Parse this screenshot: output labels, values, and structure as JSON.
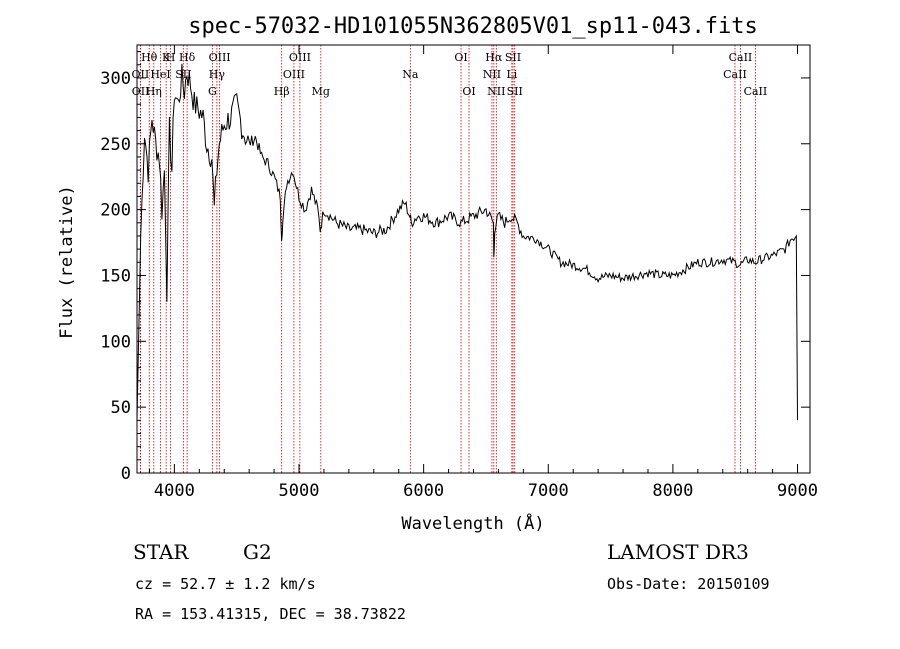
{
  "chart_data": {
    "type": "line",
    "title": "spec-57032-HD101055N362805V01_sp11-043.fits",
    "xlabel": "Wavelength (Å)",
    "ylabel": "Flux (relative)",
    "xlim": [
      3700,
      9100
    ],
    "ylim": [
      0,
      325
    ],
    "xticks": [
      4000,
      5000,
      6000,
      7000,
      8000,
      9000
    ],
    "yticks": [
      0,
      50,
      100,
      150,
      200,
      250,
      300
    ],
    "series": [
      {
        "x": [
          3700,
          3730,
          3760,
          3790,
          3820,
          3850,
          3880,
          3900,
          3920,
          3940,
          3960,
          3980,
          4000,
          4030,
          4060,
          4080,
          4100,
          4130,
          4160,
          4200,
          4230,
          4260,
          4300,
          4320,
          4340,
          4360,
          4400,
          4450,
          4500,
          4550,
          4600,
          4650,
          4700,
          4750,
          4800,
          4850,
          4860,
          4870,
          4900,
          4950,
          5000,
          5050,
          5100,
          5150,
          5170,
          5180,
          5200,
          5250,
          5300,
          5400,
          5500,
          5600,
          5700,
          5800,
          5850,
          5890,
          5900,
          5950,
          6000,
          6100,
          6200,
          6300,
          6400,
          6500,
          6560,
          6563,
          6570,
          6600,
          6650,
          6700,
          6750,
          6800,
          6900,
          7000,
          7100,
          7200,
          7300,
          7400,
          7500,
          7600,
          7700,
          7800,
          7900,
          8000,
          8100,
          8200,
          8300,
          8400,
          8500,
          8540,
          8600,
          8660,
          8700,
          8800,
          8900,
          8950,
          8990,
          9000
        ],
        "y": [
          40,
          180,
          260,
          230,
          270,
          250,
          240,
          200,
          230,
          140,
          260,
          230,
          290,
          280,
          300,
          290,
          305,
          295,
          280,
          275,
          270,
          250,
          240,
          200,
          230,
          250,
          265,
          270,
          280,
          260,
          250,
          255,
          240,
          235,
          225,
          210,
          180,
          190,
          220,
          230,
          210,
          200,
          215,
          200,
          185,
          190,
          200,
          195,
          190,
          185,
          185,
          182,
          185,
          200,
          205,
          195,
          190,
          195,
          195,
          190,
          195,
          190,
          195,
          200,
          190,
          165,
          185,
          195,
          190,
          195,
          190,
          180,
          178,
          170,
          160,
          158,
          155,
          148,
          150,
          148,
          150,
          152,
          150,
          150,
          155,
          160,
          160,
          162,
          160,
          158,
          162,
          160,
          162,
          165,
          170,
          178,
          180,
          40
        ]
      }
    ],
    "lines": [
      {
        "label": "Hθ",
        "x": 3798,
        "row": 0
      },
      {
        "label": "OII",
        "x": 3727,
        "row": 1
      },
      {
        "label": "OII",
        "x": 3729,
        "row": 2
      },
      {
        "label": "Hη",
        "x": 3835,
        "row": 2
      },
      {
        "label": "K",
        "x": 3934,
        "row": 0
      },
      {
        "label": "HeI",
        "x": 3889,
        "row": 1
      },
      {
        "label": "H",
        "x": 3969,
        "row": 0
      },
      {
        "label": "SII",
        "x": 4072,
        "row": 1
      },
      {
        "label": "Hδ",
        "x": 4102,
        "row": 0
      },
      {
        "label": "OIII",
        "x": 4363,
        "row": 0
      },
      {
        "label": "Hγ",
        "x": 4341,
        "row": 1
      },
      {
        "label": "G",
        "x": 4305,
        "row": 2
      },
      {
        "label": "Hβ",
        "x": 4861,
        "row": 2
      },
      {
        "label": "OIII",
        "x": 5007,
        "row": 0
      },
      {
        "label": "OIII",
        "x": 4959,
        "row": 1
      },
      {
        "label": "Mg",
        "x": 5175,
        "row": 2
      },
      {
        "label": "Na",
        "x": 5893,
        "row": 1
      },
      {
        "label": "OI",
        "x": 6300,
        "row": 0
      },
      {
        "label": "OI",
        "x": 6364,
        "row": 2
      },
      {
        "label": "Hα",
        "x": 6563,
        "row": 0
      },
      {
        "label": "NII",
        "x": 6548,
        "row": 1
      },
      {
        "label": "NII",
        "x": 6583,
        "row": 2
      },
      {
        "label": "SII",
        "x": 6717,
        "row": 0
      },
      {
        "label": "Li",
        "x": 6708,
        "row": 1
      },
      {
        "label": "SII",
        "x": 6731,
        "row": 2
      },
      {
        "label": "CaII",
        "x": 8542,
        "row": 0
      },
      {
        "label": "CaII",
        "x": 8498,
        "row": 1
      },
      {
        "label": "CaII",
        "x": 8662,
        "row": 2
      }
    ]
  },
  "info": {
    "object_class": "STAR",
    "subclass": "G2",
    "survey": "LAMOST DR3",
    "cz": "cz = 52.7 ± 1.2 km/s",
    "obs_date": "Obs-Date: 20150109",
    "coords": "RA = 153.41315, DEC =  38.73822"
  },
  "colors": {
    "spectrum": "#000000",
    "line_markers": "#cc0000"
  }
}
